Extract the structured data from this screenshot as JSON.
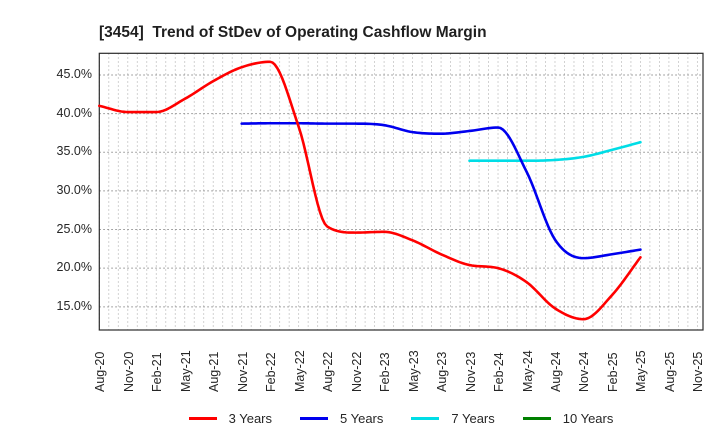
{
  "chart_data": {
    "type": "line",
    "title": "[3454]  Trend of StDev of Operating Cashflow Margin",
    "title_color": "#1f1f1f",
    "categories": [
      "Aug-20",
      "Nov-20",
      "Feb-21",
      "May-21",
      "Aug-21",
      "Nov-21",
      "Feb-22",
      "May-22",
      "Aug-22",
      "Nov-22",
      "Feb-23",
      "May-23",
      "Aug-23",
      "Nov-23",
      "Feb-24",
      "May-24",
      "Aug-24",
      "Nov-24",
      "Feb-25",
      "May-25",
      "Aug-25",
      "Nov-25"
    ],
    "y_tick_labels": [
      "45.0%",
      "40.0%",
      "35.0%",
      "30.0%",
      "25.0%",
      "20.0%",
      "15.0%"
    ],
    "y_tick_values": [
      45,
      40,
      35,
      30,
      25,
      20,
      15
    ],
    "ylim": [
      12,
      47.8
    ],
    "grid": "dotted",
    "legend_position": "bottom",
    "series": [
      {
        "name": "3 Years",
        "color": "#ff0000",
        "start_index": 0,
        "values": [
          41.0,
          40.2,
          40.2,
          41.9,
          44.2,
          46.0,
          46.7,
          38.3,
          25.4,
          24.6,
          24.7,
          23.6,
          21.8,
          20.4,
          20.0,
          18.2,
          14.8,
          13.4,
          16.5,
          21.4
        ]
      },
      {
        "name": "5 Years",
        "color": "#0000ee",
        "start_index": 5,
        "values": [
          38.7,
          38.75,
          38.75,
          38.7,
          38.7,
          38.5,
          37.6,
          37.4,
          37.75,
          38.2,
          32.5,
          23.7,
          21.3,
          21.8,
          22.4
        ]
      },
      {
        "name": "7 Years",
        "color": "#00dde6",
        "start_index": 13,
        "values": [
          33.9,
          33.9,
          33.9,
          34.0,
          34.4,
          35.3,
          36.3
        ]
      },
      {
        "name": "10 Years",
        "color": "#008000",
        "start_index": null,
        "values": []
      }
    ]
  }
}
